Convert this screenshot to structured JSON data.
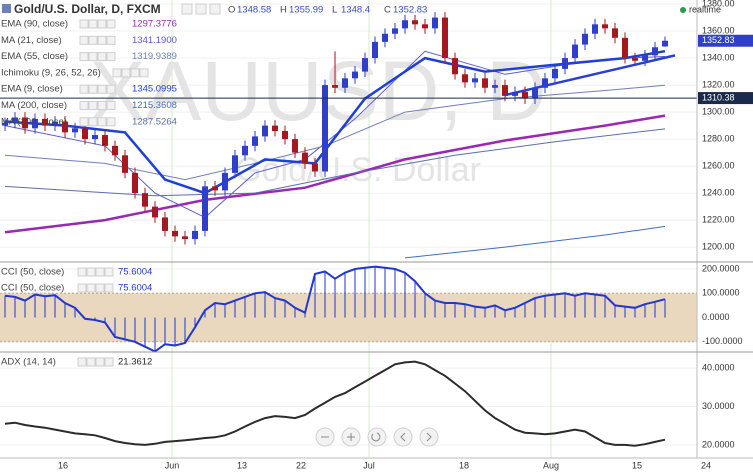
{
  "chart_data": [
    {
      "type": "candlestick",
      "title": "Gold/U.S. Dollar, D, FXCM",
      "ohlc_names": [
        "O",
        "H",
        "L",
        "C"
      ],
      "watermark": "XAUUSD, D",
      "watermark_subtitle": "Gold/U.S. Dollar",
      "status": "realtime",
      "up_color": "#2f3fc8",
      "down_color": "#a3191f",
      "open": [
        1290,
        1292,
        1296,
        1288,
        1295,
        1290,
        1293,
        1285,
        1288,
        1280,
        1283,
        1275,
        1268,
        1255,
        1240,
        1230,
        1222,
        1212,
        1208,
        1206,
        1212,
        1245,
        1242,
        1255,
        1268,
        1275,
        1282,
        1290,
        1286,
        1280,
        1270,
        1262,
        1256,
        1320,
        1318,
        1325,
        1330,
        1340,
        1352,
        1358,
        1362,
        1368,
        1365,
        1362,
        1370,
        1340,
        1328,
        1322,
        1325,
        1318,
        1320,
        1312,
        1315,
        1310,
        1318,
        1325,
        1332,
        1340,
        1350,
        1358,
        1365,
        1362,
        1355,
        1340,
        1338,
        1342,
        1348.58
      ],
      "high": [
        1296,
        1300,
        1300,
        1299,
        1299,
        1297,
        1297,
        1292,
        1292,
        1287,
        1287,
        1279,
        1272,
        1259,
        1244,
        1234,
        1226,
        1216,
        1212,
        1216,
        1249,
        1249,
        1259,
        1272,
        1279,
        1286,
        1294,
        1294,
        1290,
        1284,
        1274,
        1266,
        1324,
        1345,
        1329,
        1334,
        1344,
        1356,
        1362,
        1366,
        1372,
        1372,
        1369,
        1374,
        1374,
        1344,
        1332,
        1329,
        1329,
        1324,
        1324,
        1319,
        1319,
        1322,
        1329,
        1336,
        1344,
        1354,
        1362,
        1369,
        1369,
        1366,
        1359,
        1344,
        1346,
        1352,
        1355.99
      ],
      "low": [
        1286,
        1288,
        1284,
        1284,
        1286,
        1286,
        1281,
        1281,
        1276,
        1276,
        1271,
        1264,
        1251,
        1236,
        1226,
        1218,
        1208,
        1204,
        1202,
        1202,
        1208,
        1238,
        1238,
        1251,
        1264,
        1271,
        1278,
        1282,
        1276,
        1266,
        1258,
        1252,
        1252,
        1314,
        1314,
        1321,
        1326,
        1336,
        1348,
        1354,
        1358,
        1361,
        1358,
        1358,
        1336,
        1324,
        1318,
        1318,
        1314,
        1314,
        1308,
        1308,
        1306,
        1306,
        1314,
        1321,
        1328,
        1336,
        1346,
        1354,
        1358,
        1351,
        1336,
        1334,
        1334,
        1338,
        1348.4
      ],
      "close": [
        1292,
        1296,
        1288,
        1295,
        1290,
        1293,
        1285,
        1288,
        1280,
        1283,
        1275,
        1268,
        1255,
        1240,
        1230,
        1222,
        1212,
        1208,
        1206,
        1212,
        1245,
        1242,
        1255,
        1268,
        1275,
        1282,
        1290,
        1286,
        1280,
        1270,
        1262,
        1256,
        1320,
        1318,
        1325,
        1330,
        1340,
        1352,
        1358,
        1362,
        1368,
        1365,
        1362,
        1370,
        1340,
        1328,
        1322,
        1325,
        1318,
        1320,
        1312,
        1315,
        1310,
        1318,
        1325,
        1332,
        1340,
        1350,
        1358,
        1365,
        1362,
        1355,
        1340,
        1338,
        1342,
        1348,
        1352.83
      ],
      "series": [
        {
          "name": "EMA (90, close)",
          "value_label": "1297.3776",
          "color": "#9b27b5",
          "width": 2.5,
          "x": [
            0,
            10,
            20,
            30,
            40,
            50,
            60,
            66
          ],
          "values": [
            1211,
            1220,
            1235,
            1244,
            1265,
            1279,
            1290,
            1297.38
          ]
        },
        {
          "name": "MA (21, close)",
          "value_label": "1341.1900",
          "color": "#5a5ad6",
          "width": 1,
          "x": [
            0,
            10,
            15,
            20,
            25,
            30,
            35,
            42,
            50,
            56,
            62,
            66
          ],
          "values": [
            1290,
            1275,
            1240,
            1222,
            1255,
            1265,
            1295,
            1345,
            1328,
            1335,
            1340,
            1341.19
          ]
        },
        {
          "name": "EMA (55, close)",
          "value_label": "1319.9389",
          "color": "#6f7fb8",
          "width": 1,
          "x": [
            0,
            10,
            18,
            25,
            32,
            40,
            50,
            60,
            66
          ],
          "values": [
            1268,
            1262,
            1250,
            1262,
            1275,
            1300,
            1310,
            1316,
            1319.94
          ]
        },
        {
          "name": "Ichimoku (9, 26, 52, 26)"
        },
        {
          "name": "EMA (9, close)",
          "value_label": "1345.0995",
          "color": "#1f3fd6",
          "width": 2.5,
          "x": [
            0,
            6,
            12,
            16,
            20,
            26,
            31,
            36,
            42,
            48,
            55,
            62,
            66
          ],
          "values": [
            1293,
            1290,
            1285,
            1250,
            1240,
            1265,
            1262,
            1310,
            1340,
            1330,
            1335,
            1340,
            1345.1
          ]
        },
        {
          "name": "MA (200, close)",
          "value_label": "1215.3608",
          "color": "#3f6ec6",
          "width": 1,
          "x": [
            40,
            50,
            60,
            66
          ],
          "values": [
            1192,
            1200,
            1209,
            1215.36
          ]
        },
        {
          "name": "MA (100, close)",
          "value_label": "1287.5264",
          "color": "#5b6ea8",
          "width": 1,
          "x": [
            0,
            15,
            25,
            35,
            45,
            55,
            66
          ],
          "values": [
            1245,
            1238,
            1240,
            1255,
            1268,
            1278,
            1287.53
          ]
        }
      ],
      "trendline": {
        "x": [
          50,
          67
        ],
        "values": [
          1312.6,
          1342
        ],
        "color": "#2a3fcf"
      },
      "hline": {
        "value": 1310.38,
        "color": "#1b2a4a"
      },
      "xlim": [
        -0.5,
        69.2
      ],
      "ylim": [
        1189,
        1383
      ],
      "yticks": [
        {
          "value": 1200,
          "label": "1200.00"
        },
        {
          "value": 1220,
          "label": "1220.00"
        },
        {
          "value": 1240,
          "label": "1240.00"
        },
        {
          "value": 1260,
          "label": "1260.00"
        },
        {
          "value": 1280,
          "label": "1280.00"
        },
        {
          "value": 1300,
          "label": "1300.00"
        },
        {
          "value": 1320,
          "label": "1320.00"
        },
        {
          "value": 1340,
          "label": "1340.00"
        },
        {
          "value": 1360,
          "label": "1360.00"
        },
        {
          "value": 1380,
          "label": "1380.00"
        }
      ]
    },
    {
      "type": "line",
      "title": "CCI (50, close)",
      "value_label": "75.6004",
      "color": "#2236d0",
      "stems": true,
      "band": [
        -100,
        100
      ],
      "band_color": "#e9d8bd",
      "values": [
        90,
        85,
        70,
        95,
        88,
        92,
        60,
        40,
        -5,
        -10,
        -20,
        -80,
        -90,
        -100,
        -120,
        -140,
        -110,
        -115,
        -105,
        -40,
        30,
        60,
        55,
        70,
        85,
        100,
        105,
        80,
        70,
        40,
        20,
        180,
        190,
        160,
        185,
        200,
        205,
        210,
        205,
        200,
        185,
        150,
        100,
        70,
        60,
        60,
        55,
        45,
        40,
        50,
        30,
        40,
        60,
        80,
        90,
        95,
        100,
        90,
        100,
        95,
        90,
        50,
        45,
        40,
        55,
        65,
        75.6004
      ],
      "xlim": [
        -0.5,
        69.2
      ],
      "ylim": [
        -142,
        229
      ],
      "yticks": [
        {
          "value": -100,
          "label": "-100.0000"
        },
        {
          "value": 0,
          "label": "0.0000"
        },
        {
          "value": 100,
          "label": "100.0000"
        },
        {
          "value": 200,
          "label": "200.0000"
        }
      ]
    },
    {
      "type": "line",
      "title": "ADX (14, 14)",
      "value_label": "21.3612",
      "color": "#2b2b2b",
      "stems": false,
      "values": [
        25.5,
        25.8,
        25.2,
        24.8,
        24.5,
        24,
        23.5,
        23,
        22.8,
        22.5,
        21.8,
        21,
        20.5,
        20.2,
        20,
        20.3,
        20.8,
        21,
        21.2,
        21.5,
        21.8,
        22,
        22.5,
        23.5,
        24.8,
        26,
        27,
        27.5,
        27.3,
        27,
        27.8,
        29.5,
        31,
        32.5,
        33.5,
        35,
        36.5,
        38,
        39.5,
        41,
        41.5,
        41.7,
        41,
        39.5,
        38,
        36,
        34,
        31.5,
        29,
        27,
        25.5,
        24,
        23.2,
        23,
        22.8,
        23,
        23.5,
        24,
        23.5,
        22,
        20.5,
        20,
        20,
        19.8,
        20.2,
        20.8,
        21.3612
      ],
      "xlim": [
        -0.5,
        69.2
      ],
      "ylim": [
        16.6,
        44.2
      ],
      "yticks": [
        {
          "value": 20,
          "label": "20.0000"
        },
        {
          "value": 30,
          "label": "30.0000"
        },
        {
          "value": 40,
          "label": "40.0000"
        }
      ],
      "xticks": [
        {
          "value": 5.8,
          "label": "16"
        },
        {
          "value": 16.7,
          "label": "Jun"
        },
        {
          "value": 23.7,
          "label": "13"
        },
        {
          "value": 29.6,
          "label": "22"
        },
        {
          "value": 36.4,
          "label": "Jul"
        },
        {
          "value": 45.9,
          "label": "18"
        },
        {
          "value": 54.6,
          "label": "Aug"
        },
        {
          "value": 63.2,
          "label": "15"
        },
        {
          "value": 70.1,
          "label": "24"
        }
      ]
    }
  ]
}
